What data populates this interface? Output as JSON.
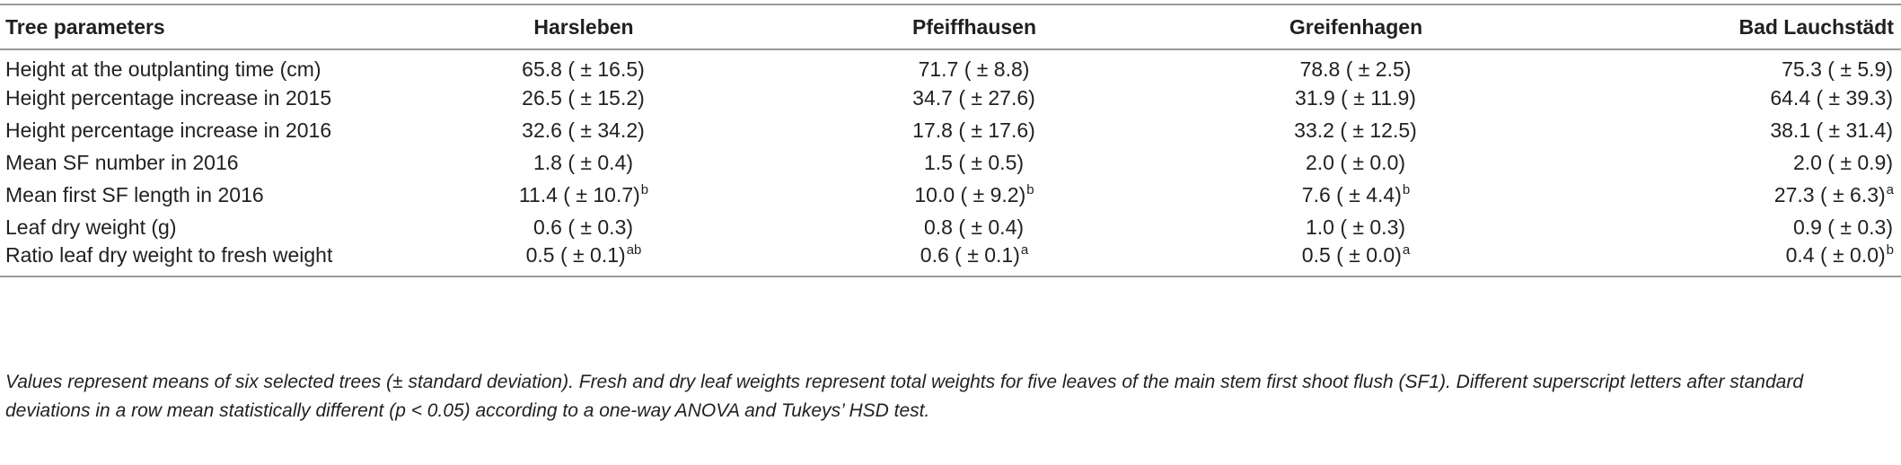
{
  "table": {
    "headers": [
      "Tree parameters",
      "Harsleben",
      "Pfeiffhausen",
      "Greifenhagen",
      "Bad Lauchstädt"
    ],
    "rows": [
      {
        "label": "Height at the outplanting time (cm)",
        "cells": [
          {
            "value": "65.8 ( ± 16.5)",
            "sup": ""
          },
          {
            "value": "71.7 ( ± 8.8)",
            "sup": ""
          },
          {
            "value": "78.8 ( ± 2.5)",
            "sup": ""
          },
          {
            "value": "75.3 ( ± 5.9)",
            "sup": ""
          }
        ]
      },
      {
        "label": "Height percentage increase in 2015",
        "cells": [
          {
            "value": "26.5 ( ± 15.2)",
            "sup": ""
          },
          {
            "value": "34.7 ( ± 27.6)",
            "sup": ""
          },
          {
            "value": "31.9 ( ± 11.9)",
            "sup": ""
          },
          {
            "value": "64.4 ( ± 39.3)",
            "sup": ""
          }
        ]
      },
      {
        "label": "Height percentage increase in 2016",
        "cells": [
          {
            "value": "32.6 ( ± 34.2)",
            "sup": ""
          },
          {
            "value": "17.8 ( ± 17.6)",
            "sup": ""
          },
          {
            "value": "33.2 ( ± 12.5)",
            "sup": ""
          },
          {
            "value": "38.1 ( ± 31.4)",
            "sup": ""
          }
        ]
      },
      {
        "label": "Mean SF number in 2016",
        "cells": [
          {
            "value": "1.8 ( ± 0.4)",
            "sup": ""
          },
          {
            "value": "1.5 ( ± 0.5)",
            "sup": ""
          },
          {
            "value": "2.0 ( ± 0.0)",
            "sup": ""
          },
          {
            "value": "2.0 ( ± 0.9)",
            "sup": ""
          }
        ]
      },
      {
        "label": "Mean first SF length in 2016",
        "cells": [
          {
            "value": "11.4 ( ± 10.7)",
            "sup": "b"
          },
          {
            "value": "10.0 ( ± 9.2)",
            "sup": "b"
          },
          {
            "value": "7.6 ( ± 4.4)",
            "sup": "b"
          },
          {
            "value": "27.3 ( ± 6.3)",
            "sup": "a"
          }
        ]
      },
      {
        "label": "Leaf dry weight (g)",
        "cells": [
          {
            "value": "0.6 ( ± 0.3)",
            "sup": ""
          },
          {
            "value": "0.8 ( ± 0.4)",
            "sup": ""
          },
          {
            "value": "1.0 ( ± 0.3)",
            "sup": ""
          },
          {
            "value": "0.9 ( ± 0.3)",
            "sup": ""
          }
        ]
      },
      {
        "label": "Ratio leaf dry weight to fresh weight",
        "cells": [
          {
            "value": "0.5 ( ± 0.1)",
            "sup": "ab"
          },
          {
            "value": "0.6 ( ± 0.1)",
            "sup": "a"
          },
          {
            "value": "0.5 ( ± 0.0)",
            "sup": "a"
          },
          {
            "value": "0.4 ( ± 0.0)",
            "sup": "b"
          }
        ]
      }
    ]
  },
  "footnote": "Values represent means of six selected trees (± standard deviation). Fresh and dry leaf weights represent total weights for five leaves of the main stem first shoot flush (SF1). Different superscript letters after standard deviations in a row mean statistically different (p < 0.05) according to a one-way ANOVA and Tukeys’ HSD test."
}
